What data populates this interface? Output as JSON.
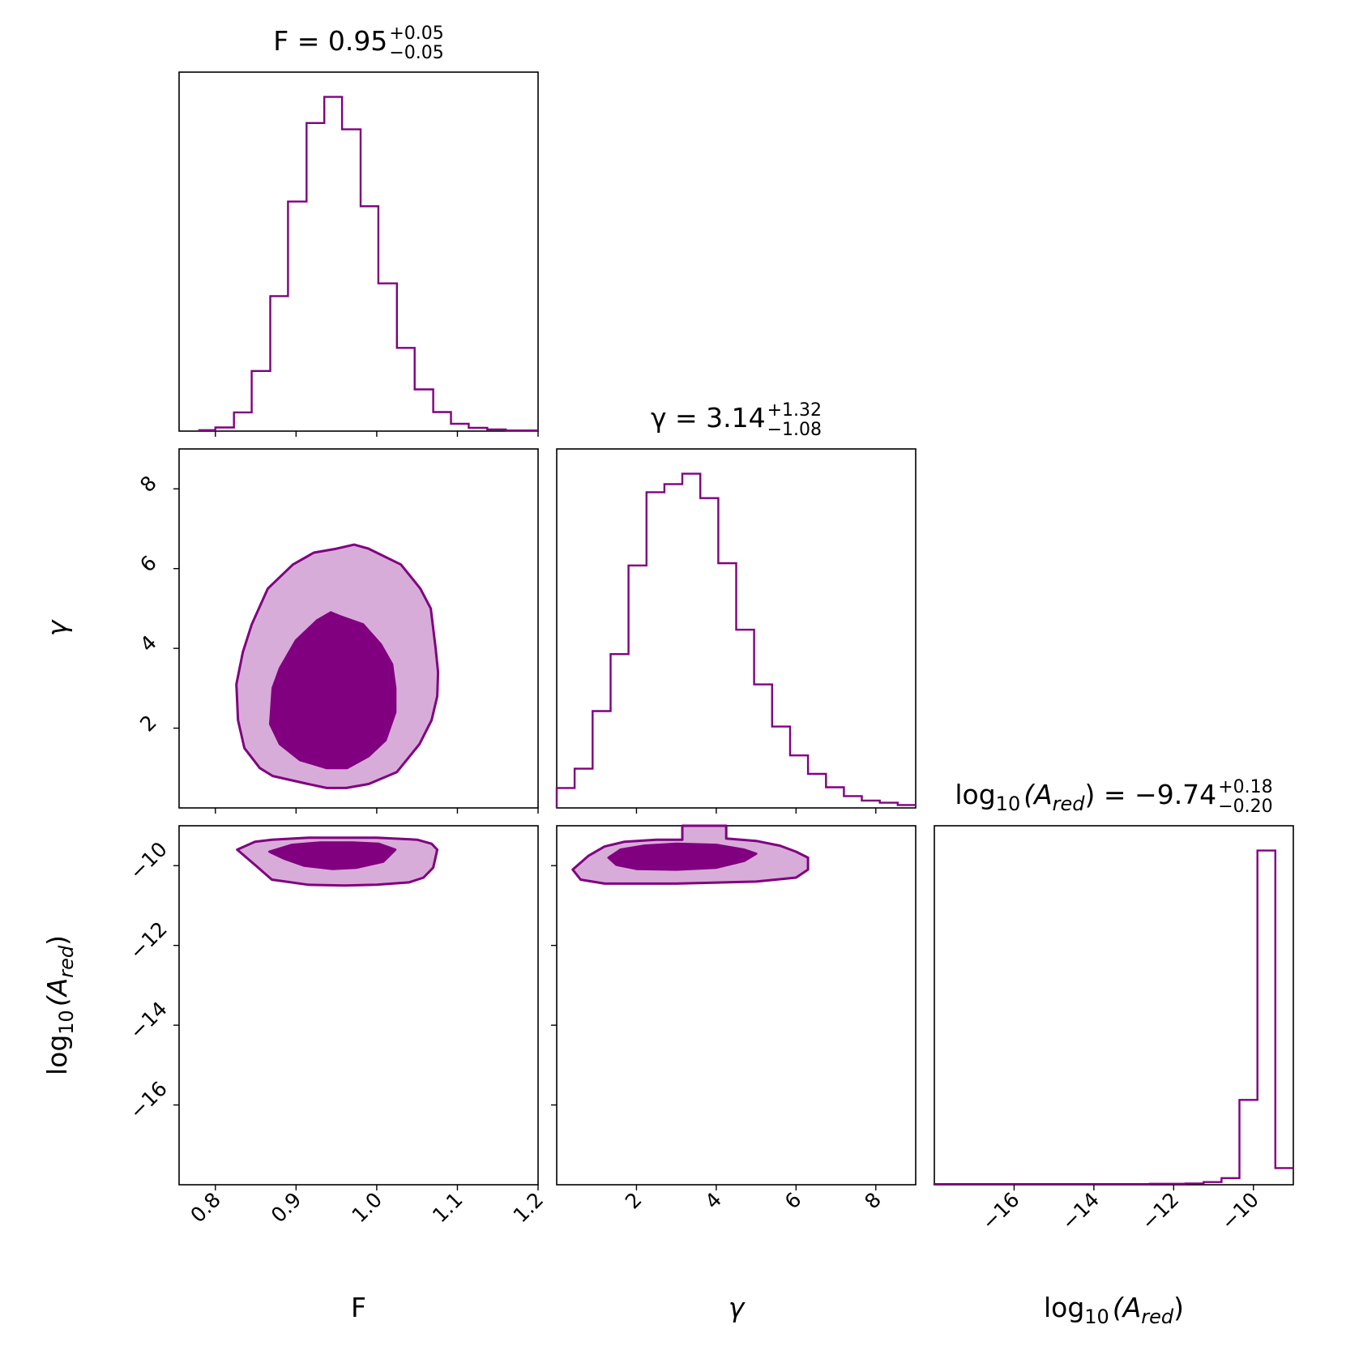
{
  "chart_data": {
    "type": "corner",
    "colors": {
      "line": "#800080",
      "fill_outer": "#d8acd8",
      "fill_inner": "#800080"
    },
    "parameters": [
      {
        "key": "F",
        "axis_label": "F",
        "title": {
          "prefix": "F = 0.95",
          "sup": "+0.05",
          "sub": "−0.05"
        },
        "range": [
          0.755,
          1.2
        ],
        "ticks": [
          0.8,
          0.9,
          1.0,
          1.1,
          1.2
        ],
        "tick_labels": [
          "0.8",
          "0.9",
          "1.0",
          "1.1",
          "1.2"
        ]
      },
      {
        "key": "gamma",
        "axis_label": "γ",
        "title": {
          "prefix": "γ = 3.14",
          "sup": "+1.32",
          "sub": "−1.08"
        },
        "range": [
          0.0,
          9.0
        ],
        "ticks": [
          2,
          4,
          6,
          8
        ],
        "tick_labels": [
          "2",
          "4",
          "6",
          "8"
        ]
      },
      {
        "key": "log10_A_red",
        "axis_label": "log10(A_red)",
        "axis_label_parts": {
          "pre": "log",
          "sub1": "10",
          "mid": "(A",
          "sub2": "red",
          "post": ")"
        },
        "title": {
          "prefix_parts": {
            "pre": "log",
            "sub1": "10",
            "mid": "(A",
            "sub2": "red",
            "post": ") = −9.74"
          },
          "sup": "+0.18",
          "sub": "−0.20"
        },
        "range": [
          -18.0,
          -9.0
        ],
        "ticks": [
          -16,
          -14,
          -12,
          -10
        ],
        "tick_labels": [
          "−16",
          "−14",
          "−12",
          "−10"
        ]
      }
    ],
    "histograms": {
      "F": {
        "edges": [
          0.755,
          0.7994,
          0.8438,
          0.8882,
          0.9326,
          0.977,
          1.0214,
          1.0658,
          1.1102,
          1.1546,
          1.199
        ],
        "note_unused": "",
        "bin_edges": [
          0.78,
          0.8,
          0.823,
          0.845,
          0.868,
          0.89,
          0.913,
          0.935,
          0.957,
          0.98,
          1.002,
          1.025,
          1.047,
          1.07,
          1.092,
          1.114,
          1.137,
          1.16,
          1.2
        ],
        "counts": [
          0.3,
          1.1,
          5.6,
          18.0,
          40.4,
          68.7,
          92.2,
          100.0,
          90.3,
          67.3,
          44.2,
          24.9,
          12.5,
          5.7,
          2.2,
          1.0,
          0.5,
          0.2
        ]
      },
      "gamma": {
        "bin_edges": [
          0.0,
          0.45,
          0.9,
          1.35,
          1.8,
          2.25,
          2.7,
          3.15,
          3.6,
          4.05,
          4.5,
          4.95,
          5.4,
          5.85,
          6.3,
          6.75,
          7.2,
          7.65,
          8.1,
          8.55,
          9.0
        ],
        "counts": [
          2.7,
          5.3,
          13.1,
          20.8,
          32.8,
          42.7,
          43.8,
          45.2,
          41.9,
          33.1,
          24.1,
          16.7,
          11.0,
          7.1,
          4.6,
          2.8,
          1.6,
          1.0,
          0.7,
          0.4
        ]
      },
      "log10_A_red": {
        "bin_edges": [
          -18.0,
          -17.55,
          -17.1,
          -16.65,
          -16.2,
          -15.75,
          -15.3,
          -14.85,
          -14.4,
          -13.95,
          -13.5,
          -13.05,
          -12.6,
          -12.15,
          -11.7,
          -11.25,
          -10.8,
          -10.35,
          -9.9,
          -9.45,
          -9.0
        ],
        "counts": [
          0.2,
          0.2,
          0.2,
          0.2,
          0.2,
          0.2,
          0.2,
          0.2,
          0.2,
          0.2,
          0.2,
          0.2,
          0.3,
          0.3,
          0.4,
          0.8,
          2.0,
          25.4,
          100.0,
          5.0
        ]
      }
    },
    "contours": {
      "gamma_vs_F": {
        "outer": [
          [
            0.826,
            3.1
          ],
          [
            0.828,
            2.2
          ],
          [
            0.836,
            1.5
          ],
          [
            0.855,
            1.0
          ],
          [
            0.871,
            0.8
          ],
          [
            0.915,
            0.6
          ],
          [
            0.938,
            0.5
          ],
          [
            0.962,
            0.5
          ],
          [
            0.99,
            0.6
          ],
          [
            1.025,
            0.9
          ],
          [
            1.053,
            1.6
          ],
          [
            1.068,
            2.2
          ],
          [
            1.075,
            2.8
          ],
          [
            1.076,
            3.4
          ],
          [
            1.073,
            4.0
          ],
          [
            1.067,
            5.0
          ],
          [
            1.054,
            5.5
          ],
          [
            1.03,
            6.1
          ],
          [
            0.99,
            6.5
          ],
          [
            0.972,
            6.6
          ],
          [
            0.95,
            6.5
          ],
          [
            0.922,
            6.4
          ],
          [
            0.896,
            6.1
          ],
          [
            0.865,
            5.5
          ],
          [
            0.845,
            4.6
          ],
          [
            0.834,
            3.9
          ]
        ],
        "inner": [
          [
            0.868,
            2.1
          ],
          [
            0.88,
            1.6
          ],
          [
            0.905,
            1.2
          ],
          [
            0.938,
            1.0
          ],
          [
            0.963,
            1.0
          ],
          [
            0.99,
            1.3
          ],
          [
            1.011,
            1.7
          ],
          [
            1.023,
            2.4
          ],
          [
            1.023,
            3.0
          ],
          [
            1.019,
            3.6
          ],
          [
            1.005,
            4.1
          ],
          [
            0.983,
            4.6
          ],
          [
            0.955,
            4.8
          ],
          [
            0.943,
            4.9
          ],
          [
            0.926,
            4.7
          ],
          [
            0.9,
            4.2
          ],
          [
            0.88,
            3.5
          ],
          [
            0.871,
            3.0
          ]
        ]
      },
      "logA_vs_F": {
        "outer": [
          [
            0.827,
            -9.6
          ],
          [
            0.849,
            -9.4
          ],
          [
            0.87,
            -9.35
          ],
          [
            0.915,
            -9.3
          ],
          [
            0.96,
            -9.3
          ],
          [
            1.0,
            -9.3
          ],
          [
            1.05,
            -9.35
          ],
          [
            1.068,
            -9.45
          ],
          [
            1.075,
            -9.6
          ],
          [
            1.07,
            -10.05
          ],
          [
            1.058,
            -10.3
          ],
          [
            1.04,
            -10.42
          ],
          [
            1.0,
            -10.48
          ],
          [
            0.96,
            -10.5
          ],
          [
            0.915,
            -10.48
          ],
          [
            0.87,
            -10.35
          ],
          [
            0.849,
            -9.98
          ]
        ],
        "inner": [
          [
            0.867,
            -9.65
          ],
          [
            0.895,
            -9.48
          ],
          [
            0.93,
            -9.42
          ],
          [
            0.97,
            -9.42
          ],
          [
            1.002,
            -9.45
          ],
          [
            1.023,
            -9.6
          ],
          [
            1.008,
            -9.9
          ],
          [
            0.975,
            -10.05
          ],
          [
            0.945,
            -10.08
          ],
          [
            0.91,
            -10.0
          ],
          [
            0.885,
            -9.82
          ]
        ]
      },
      "logA_vs_gamma": {
        "outer": [
          [
            0.4,
            -10.1
          ],
          [
            0.8,
            -9.75
          ],
          [
            1.2,
            -9.52
          ],
          [
            1.7,
            -9.4
          ],
          [
            2.5,
            -9.35
          ],
          [
            3.15,
            -9.35
          ],
          [
            3.15,
            -9.0
          ],
          [
            4.25,
            -9.0
          ],
          [
            4.25,
            -9.32
          ],
          [
            5.0,
            -9.38
          ],
          [
            5.6,
            -9.5
          ],
          [
            6.0,
            -9.65
          ],
          [
            6.3,
            -9.8
          ],
          [
            6.3,
            -10.1
          ],
          [
            6.0,
            -10.3
          ],
          [
            5.0,
            -10.4
          ],
          [
            3.0,
            -10.45
          ],
          [
            1.2,
            -10.45
          ],
          [
            0.6,
            -10.35
          ]
        ],
        "inner": [
          [
            1.3,
            -9.8
          ],
          [
            1.6,
            -9.6
          ],
          [
            2.2,
            -9.5
          ],
          [
            3.0,
            -9.45
          ],
          [
            4.0,
            -9.48
          ],
          [
            4.7,
            -9.6
          ],
          [
            5.0,
            -9.7
          ],
          [
            4.7,
            -9.88
          ],
          [
            4.0,
            -10.05
          ],
          [
            3.0,
            -10.1
          ],
          [
            2.0,
            -10.08
          ],
          [
            1.5,
            -9.98
          ]
        ]
      }
    }
  }
}
